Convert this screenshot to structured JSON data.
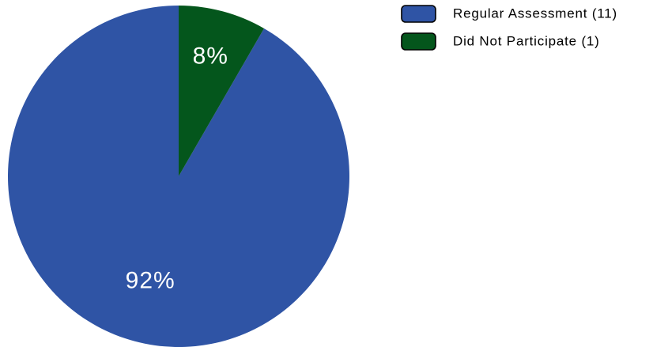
{
  "chart_data": {
    "type": "pie",
    "title": "",
    "start": "12 o'clock",
    "direction": "counterclockwise",
    "slices": [
      {
        "label": "Regular Assessment",
        "value": 11,
        "percent_label": "92%",
        "legend_label": "Regular Assessment (11)",
        "color": "#2f54a5"
      },
      {
        "label": "Did Not Participate",
        "value": 1,
        "percent_label": "8%",
        "legend_label": "Did Not Participate (1)",
        "color": "#04561c"
      }
    ],
    "legend": {
      "placement": "top-right"
    }
  }
}
